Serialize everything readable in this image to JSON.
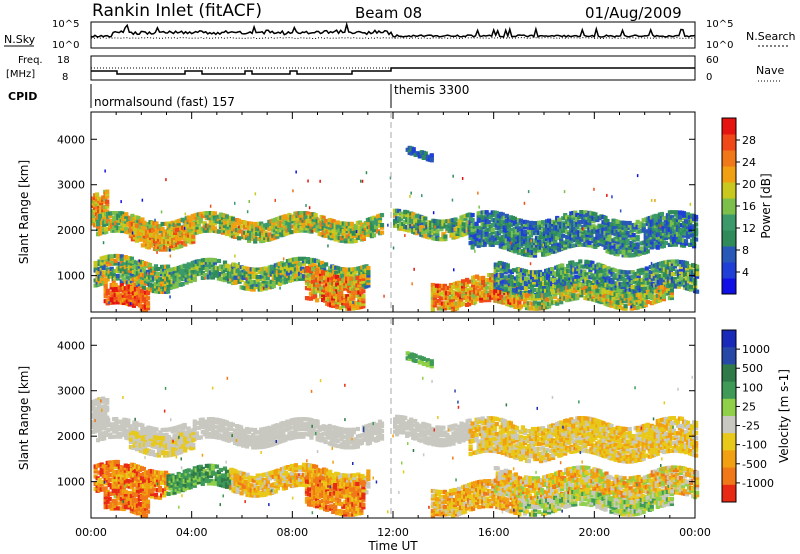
{
  "header": {
    "title": "Rankin Inlet (fitACF)",
    "beam": "Beam 08",
    "date": "01/Aug/2009"
  },
  "top_panels": {
    "nsky": {
      "label": "N.Sky",
      "ticks_left": [
        "10^5",
        "10^0"
      ],
      "ticks_right": [
        "10^5",
        "10^0"
      ],
      "right_label": "N.Search"
    },
    "freq": {
      "label_line1": "Freq.",
      "label_line2": "[MHz]",
      "ticks_left": [
        "18",
        "8"
      ],
      "ticks_right": [
        "60",
        "0"
      ],
      "right_label": "Nave"
    },
    "cpid": {
      "label": "CPID",
      "segments": [
        {
          "text": "normalsound (fast) 157"
        },
        {
          "text": "themis 3300"
        }
      ]
    }
  },
  "chart_data": [
    {
      "type": "heatmap",
      "panel": "power",
      "ylabel": "Slant Range [km]",
      "ylim": [
        200,
        4600
      ],
      "y_ticks": [
        1000,
        2000,
        3000,
        4000
      ],
      "xlim": [
        0,
        24
      ],
      "colorbar": {
        "label": "Power [dB]",
        "range": [
          0,
          32
        ],
        "ticks": [
          4,
          8,
          12,
          16,
          20,
          24,
          28
        ],
        "colors": [
          "#1010e6",
          "#1f3fd6",
          "#2858b8",
          "#2f8c5a",
          "#3c9a6a",
          "#7cc04b",
          "#c8c81e",
          "#f0a010",
          "#f07818",
          "#f04818",
          "#e61410"
        ]
      }
    },
    {
      "type": "heatmap",
      "panel": "velocity",
      "ylabel": "Slant Range [km]",
      "ylim": [
        200,
        4600
      ],
      "y_ticks": [
        1000,
        2000,
        3000,
        4000
      ],
      "xlim": [
        0,
        24
      ],
      "colorbar": {
        "label": "Velocity [m s-1]",
        "tick_labels": [
          "1000",
          "500",
          "100",
          "25",
          "-25",
          "-100",
          "-500",
          "-1000"
        ],
        "colors": [
          "#1a2ab8",
          "#2848a8",
          "#2f7a48",
          "#3f9a58",
          "#8fd048",
          "#c8c8c0",
          "#e8c818",
          "#f0a010",
          "#f07818",
          "#e82a14"
        ]
      }
    }
  ],
  "xaxis": {
    "tick_labels": [
      "00:00",
      "04:00",
      "08:00",
      "12:00",
      "16:00",
      "20:00",
      "00:00"
    ],
    "label": "Time UT"
  }
}
